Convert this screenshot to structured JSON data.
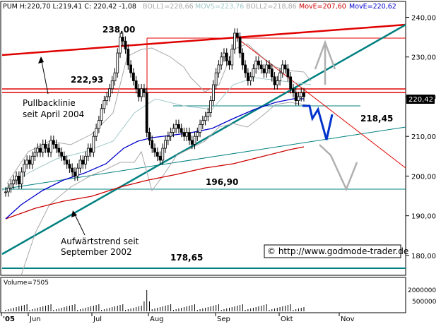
{
  "header": {
    "symbol_line": "PUM H:220,70 L:219,41 C: 220,42 -1,08",
    "boll1": "BOLL1=228,66",
    "movs": "MOVS=223,76",
    "boll2": "BOLL2=218,86",
    "move1": "MovE=207,60",
    "move2": "MovE=220,62"
  },
  "colors": {
    "boll": "#a8a8a8",
    "movs": "#a0c8c8",
    "move_red": "#cc0000",
    "move_blue": "#0000cc",
    "resistance_red": "#e00000",
    "trend_teal": "#008080",
    "candles": "#000000",
    "projection_blue": "#0033cc",
    "projection_gray": "#b0b0b0",
    "price_badge_bg": "#000000"
  },
  "icons": [
    "arrow-up-icon",
    "arrow-down-icon",
    "arrow-pointer-icon"
  ],
  "annotations": {
    "level_238": "238,00",
    "level_222": "222,93",
    "level_218": "218,45",
    "level_196": "196,90",
    "level_178": "178,65",
    "pullback_1": "Pullbacklinie",
    "pullback_2": "seit April 2004",
    "uptrend_1": "Aufwärtstrend seit",
    "uptrend_2": "September 2002",
    "copyright": "© http://www.godmode-trader.de"
  },
  "last_price": "220,42",
  "volume_label": "Volume=7505",
  "chart_data": {
    "type": "candlestick",
    "ylim": [
      175,
      244
    ],
    "y_ticks": [
      {
        "value": 180,
        "label": "180,00"
      },
      {
        "value": 190,
        "label": "190,00"
      },
      {
        "value": 200,
        "label": "200,00"
      },
      {
        "value": 210,
        "label": "210,00"
      },
      {
        "value": 220,
        "label": "220,00"
      },
      {
        "value": 230,
        "label": "230,00"
      },
      {
        "value": 240,
        "label": "240,00"
      }
    ],
    "x_ticks": [
      "'05",
      "Jun",
      "Jul",
      "Aug",
      "Sep",
      "Okt",
      "Nov"
    ],
    "volume_ticks": [
      "2000000",
      "500000"
    ],
    "levels": [
      238.0,
      222.93,
      218.45,
      196.9,
      178.65
    ],
    "close": [
      196,
      197,
      198,
      199,
      200,
      198,
      201,
      203,
      204,
      203,
      205,
      206,
      207,
      206,
      208,
      207,
      206,
      209,
      208,
      207,
      206,
      205,
      204,
      203,
      202,
      201,
      200,
      202,
      204,
      203,
      205,
      207,
      206,
      210,
      212,
      214,
      217,
      219,
      220,
      222,
      224,
      226,
      231,
      235,
      234,
      232,
      228,
      226,
      224,
      222,
      220,
      222,
      221,
      211,
      209,
      207,
      206,
      205,
      204,
      207,
      209,
      210,
      211,
      212,
      213,
      212,
      211,
      210,
      211,
      209,
      208,
      210,
      211,
      213,
      214,
      215,
      216,
      219,
      223,
      226,
      228,
      230,
      231,
      229,
      228,
      232,
      236,
      235,
      231,
      228,
      226,
      224,
      225,
      227,
      229,
      228,
      227,
      226,
      228,
      227,
      225,
      223,
      224,
      226,
      228,
      227,
      225,
      222,
      221,
      219,
      220,
      221,
      220
    ]
  }
}
